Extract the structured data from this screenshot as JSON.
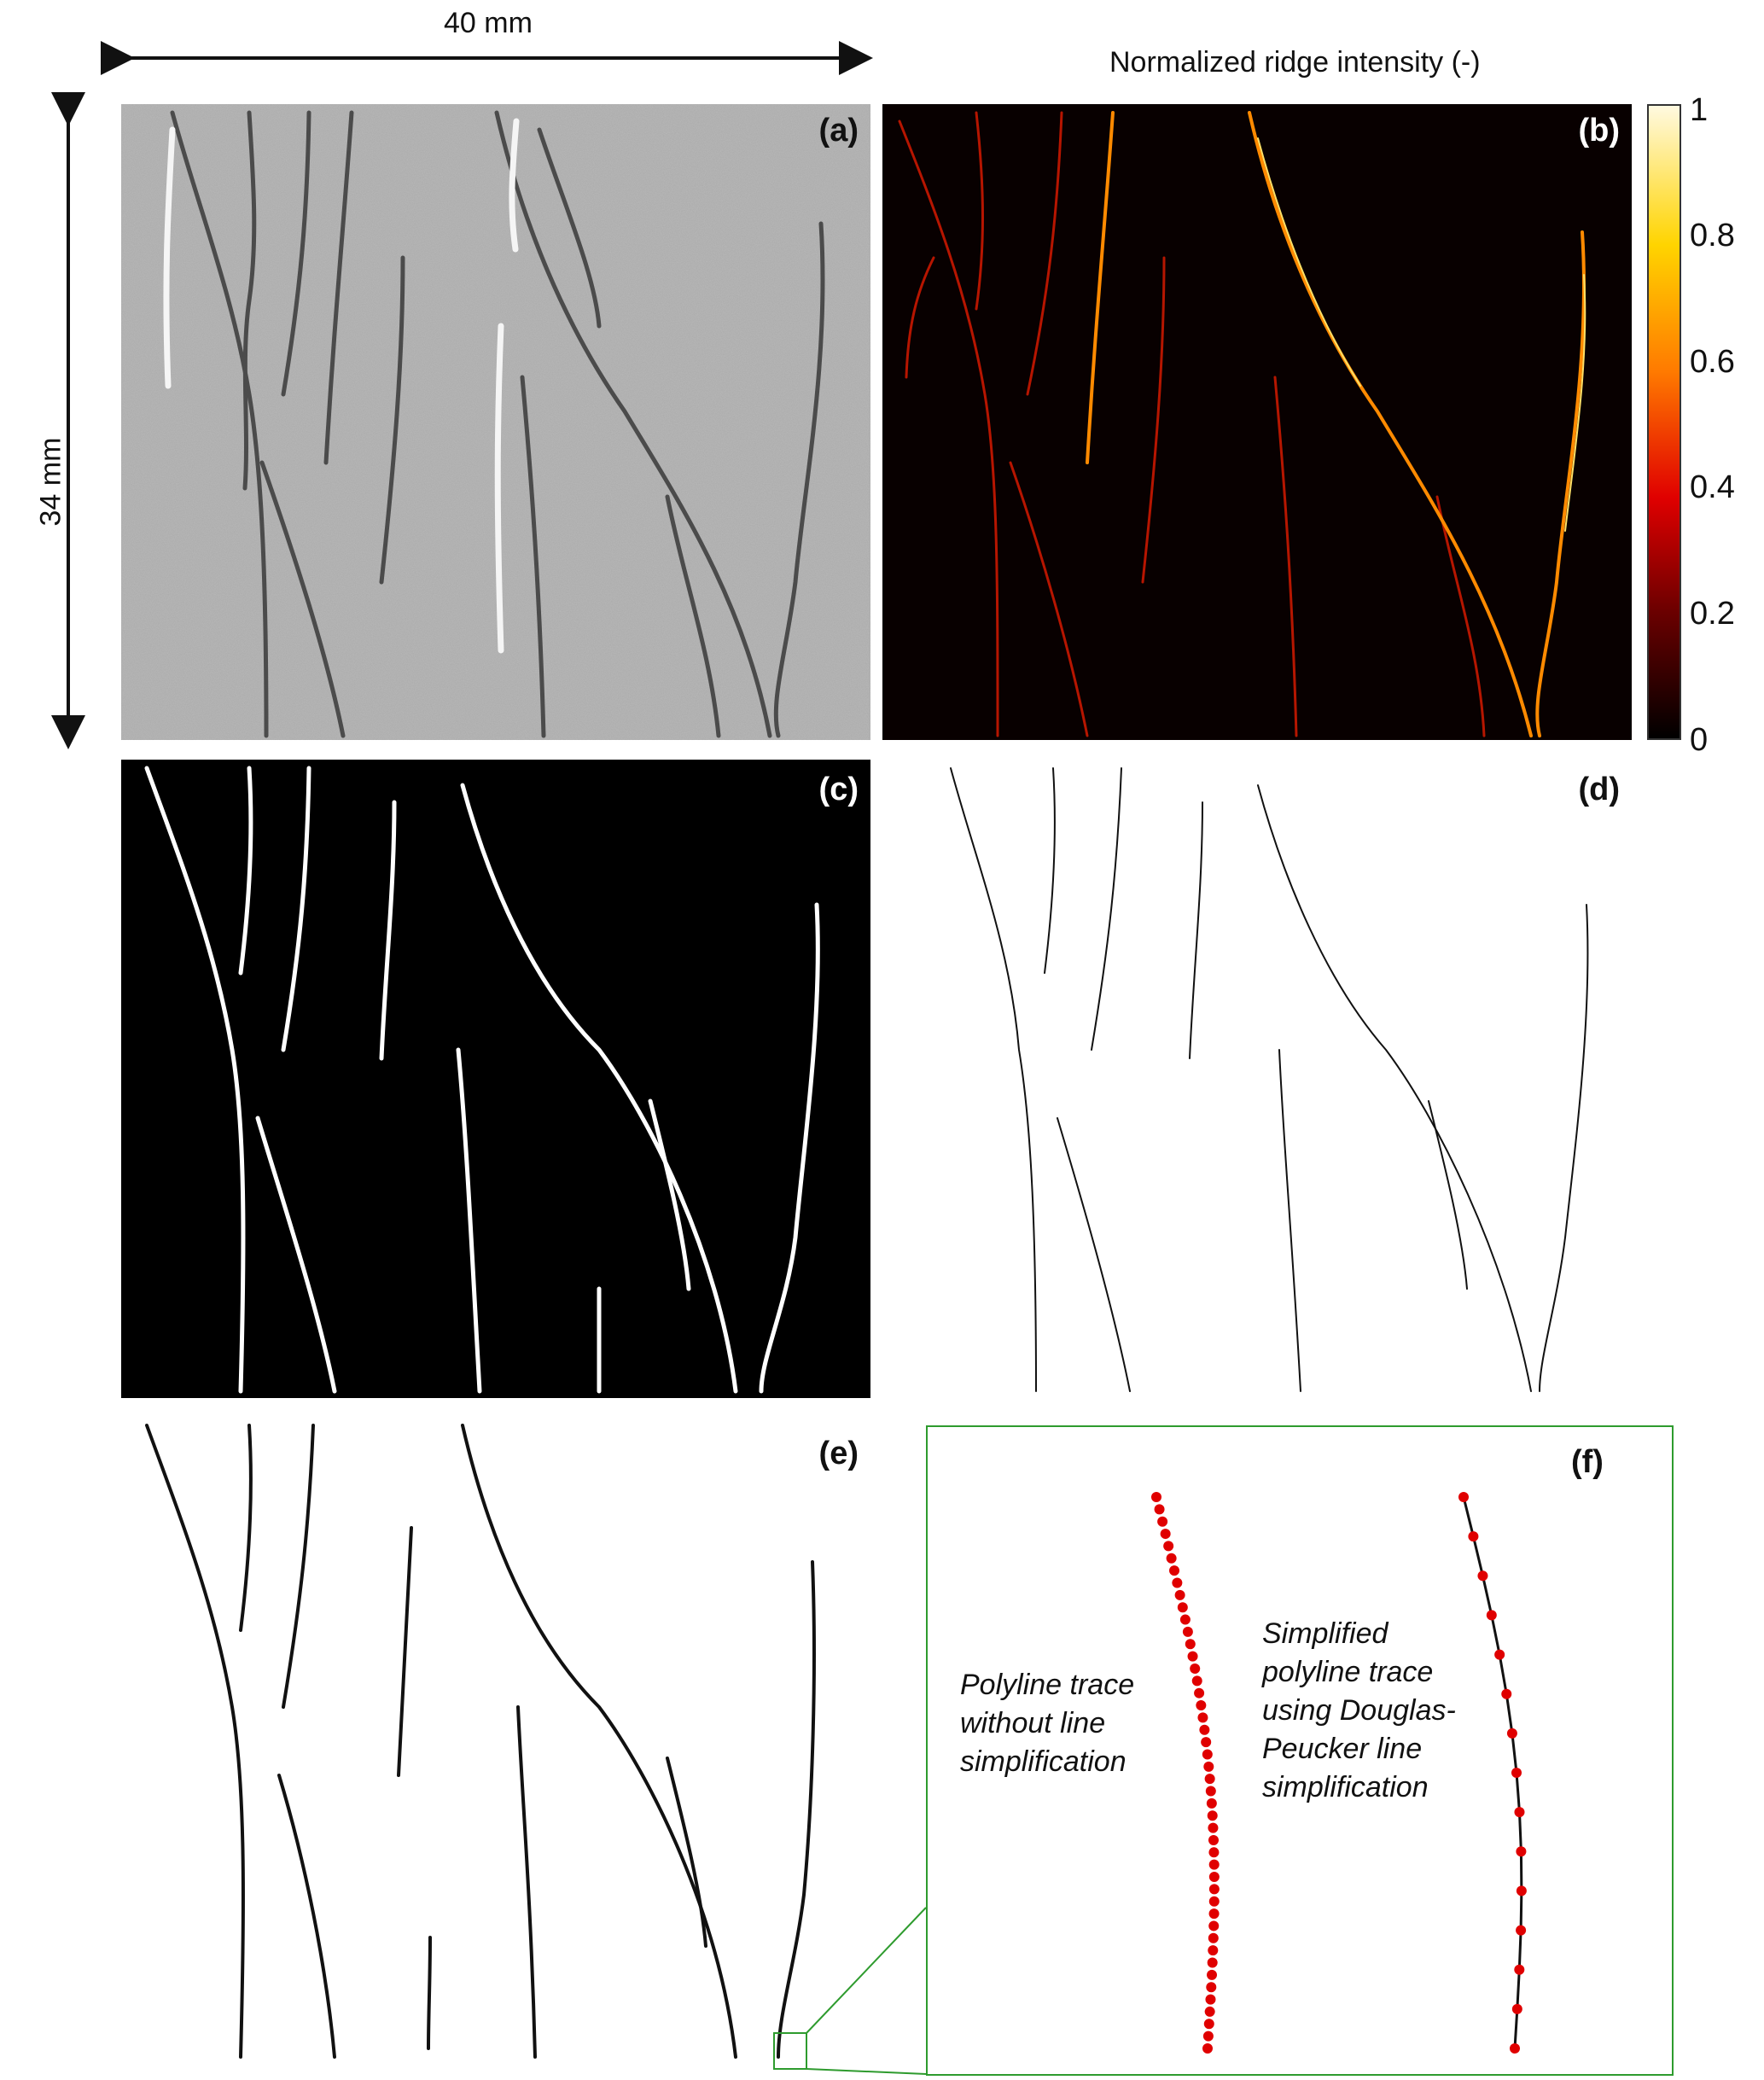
{
  "dimensions": {
    "width_label": "40 mm",
    "height_label": "34 mm"
  },
  "colorbar": {
    "title": "Normalized ridge intensity (-)",
    "ticks": [
      "1",
      "0.8",
      "0.6",
      "0.4",
      "0.2",
      "0"
    ],
    "colors": [
      "#000000",
      "#6b0000",
      "#e00000",
      "#ff7a00",
      "#ffd400",
      "#fff9e0"
    ]
  },
  "panels": {
    "a": "(a)",
    "b": "(b)",
    "c": "(c)",
    "d": "(d)",
    "e": "(e)",
    "f": "(f)"
  },
  "inset": {
    "left_caption": [
      "Polyline trace",
      "without line",
      "simplification"
    ],
    "right_caption": [
      "Simplified",
      "polyline trace",
      "using Douglas-",
      "Peucker line",
      "simplification"
    ],
    "point_color": "#e00000",
    "frame_color": "#2e9b2e"
  }
}
